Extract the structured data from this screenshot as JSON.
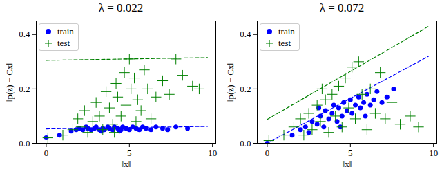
{
  "chart_data": [
    {
      "type": "scatter",
      "title": "λ = 0.022",
      "x_label": "‖x‖",
      "y_label": "‖p(z) − Cx‖",
      "xlim": [
        -0.6,
        10.2
      ],
      "ylim": [
        0,
        0.45
      ],
      "xticks": [
        0,
        5,
        10
      ],
      "yticks": [
        {
          "value": 0,
          "label": "0.0"
        },
        {
          "value": 0.2,
          "label": "0.2"
        },
        {
          "value": 0.4,
          "label": "0.4"
        }
      ],
      "legend": "upper left",
      "series": [
        {
          "name": "train",
          "color": "#0000ff",
          "marker": "circle",
          "x": [
            0,
            0.8,
            1.5,
            1.8,
            2.0,
            2.2,
            2.5,
            2.7,
            2.9,
            3.0,
            3.2,
            3.4,
            3.5,
            3.7,
            3.8,
            4.0,
            4.1,
            4.3,
            4.5,
            4.6,
            4.8,
            5.0,
            5.2,
            5.4,
            5.6,
            5.8,
            6.0,
            6.3,
            6.6,
            7.0,
            7.3,
            7.8,
            8.5,
            3.3,
            4.4,
            2.4
          ],
          "values": [
            0.02,
            0.03,
            0.045,
            0.05,
            0.055,
            0.05,
            0.055,
            0.05,
            0.055,
            0.06,
            0.05,
            0.055,
            0.05,
            0.06,
            0.055,
            0.05,
            0.06,
            0.055,
            0.05,
            0.06,
            0.055,
            0.05,
            0.06,
            0.055,
            0.05,
            0.06,
            0.055,
            0.05,
            0.06,
            0.055,
            0.05,
            0.06,
            0.055,
            0.045,
            0.045,
            0.06
          ]
        },
        {
          "name": "test",
          "color": "#008000",
          "marker": "plus",
          "x": [
            0.1,
            1.0,
            1.6,
            1.9,
            2.1,
            2.3,
            2.5,
            2.8,
            3.0,
            3.2,
            3.4,
            3.6,
            3.8,
            4.0,
            4.2,
            4.3,
            4.5,
            4.7,
            4.8,
            5.0,
            5.1,
            5.3,
            5.5,
            5.7,
            5.9,
            6.1,
            6.3,
            6.6,
            7.0,
            7.4,
            7.8,
            8.2,
            8.8,
            9.2,
            5.4,
            4.1
          ],
          "values": [
            0.02,
            0.03,
            0.05,
            0.09,
            0.06,
            0.12,
            0.04,
            0.08,
            0.15,
            0.1,
            0.05,
            0.19,
            0.13,
            0.07,
            0.22,
            0.17,
            0.1,
            0.26,
            0.14,
            0.31,
            0.2,
            0.24,
            0.16,
            0.12,
            0.27,
            0.2,
            0.09,
            0.17,
            0.23,
            0.18,
            0.31,
            0.25,
            0.21,
            0.2,
            0.08,
            0.04
          ]
        }
      ],
      "lines": [
        {
          "color": "#008000",
          "line_style": "dashed",
          "x": [
            0,
            9.7
          ],
          "values": [
            0.305,
            0.315
          ]
        },
        {
          "color": "#0000ff",
          "line_style": "dashed",
          "x": [
            0,
            9.7
          ],
          "values": [
            0.053,
            0.062
          ]
        }
      ]
    },
    {
      "type": "scatter",
      "title": "λ = 0.072",
      "x_label": "‖x‖",
      "y_label": "‖p(z) − Cx‖",
      "xlim": [
        -0.6,
        10.2
      ],
      "ylim": [
        0,
        0.45
      ],
      "xticks": [
        0,
        5,
        10
      ],
      "yticks": [
        {
          "value": 0,
          "label": "0.0"
        },
        {
          "value": 0.2,
          "label": "0.2"
        },
        {
          "value": 0.4,
          "label": "0.4"
        }
      ],
      "legend": "upper left",
      "series": [
        {
          "name": "train",
          "color": "#0000ff",
          "marker": "circle",
          "x": [
            0,
            1.5,
            2.0,
            2.3,
            2.5,
            2.7,
            3.0,
            3.2,
            3.4,
            3.5,
            3.7,
            3.9,
            4.0,
            4.2,
            4.3,
            4.5,
            4.6,
            4.8,
            5.0,
            5.1,
            5.3,
            5.5,
            5.6,
            5.8,
            6.0,
            6.2,
            6.4,
            6.6,
            6.9,
            7.2,
            7.6,
            4.4,
            3.1,
            5.9
          ],
          "values": [
            0.0,
            0.03,
            0.05,
            0.06,
            0.04,
            0.08,
            0.07,
            0.1,
            0.06,
            0.12,
            0.09,
            0.11,
            0.14,
            0.08,
            0.13,
            0.1,
            0.15,
            0.12,
            0.16,
            0.11,
            0.14,
            0.17,
            0.13,
            0.15,
            0.18,
            0.14,
            0.16,
            0.19,
            0.15,
            0.17,
            0.2,
            0.06,
            0.13,
            0.1
          ]
        },
        {
          "name": "test",
          "color": "#008000",
          "marker": "plus",
          "x": [
            0.1,
            1.0,
            1.6,
            2.0,
            2.2,
            2.5,
            2.7,
            3.0,
            3.2,
            3.5,
            3.7,
            3.9,
            4.1,
            4.3,
            4.5,
            4.7,
            4.9,
            5.1,
            5.3,
            5.5,
            5.7,
            6.0,
            6.2,
            6.5,
            6.8,
            7.1,
            7.5,
            8.0,
            8.6,
            9.1,
            3.3
          ],
          "values": [
            0.01,
            0.03,
            0.06,
            0.09,
            0.03,
            0.11,
            0.05,
            0.14,
            0.08,
            0.16,
            0.04,
            0.18,
            0.1,
            0.21,
            0.06,
            0.24,
            0.13,
            0.28,
            0.09,
            0.3,
            0.18,
            0.05,
            0.2,
            0.11,
            0.26,
            0.09,
            0.15,
            0.07,
            0.1,
            0.06,
            0.2
          ]
        }
      ],
      "lines": [
        {
          "color": "#008000",
          "line_style": "dashed",
          "x": [
            0,
            9.7
          ],
          "values": [
            0.088,
            0.43
          ]
        },
        {
          "color": "#0000ff",
          "line_style": "dashed",
          "x": [
            0,
            9.7
          ],
          "values": [
            0.0,
            0.32
          ]
        }
      ]
    }
  ]
}
